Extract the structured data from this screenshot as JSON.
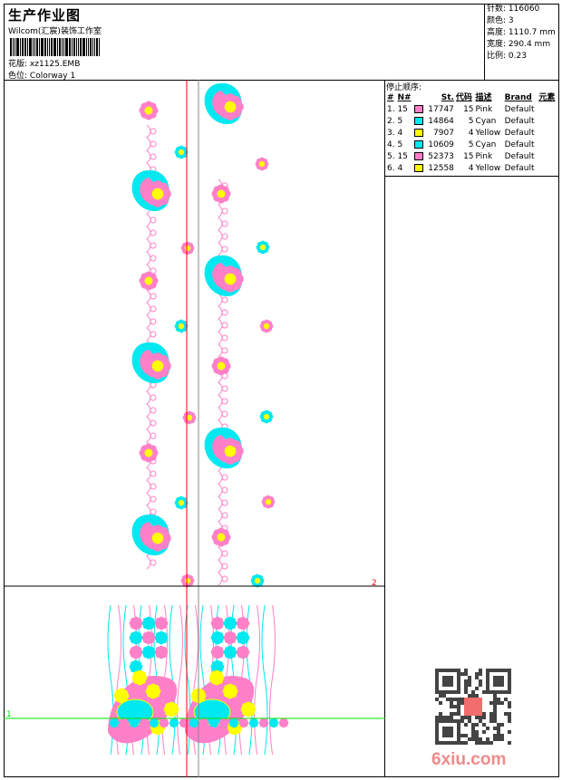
{
  "header": {
    "title": "生产作业图",
    "studio": "Wilcom(汇宸)装饰工作室",
    "design_label": "花版:",
    "design_value": "xz1125.EMB",
    "colorway_label": "色位:",
    "colorway_value": "Colorway 1"
  },
  "stats": [
    {
      "label": "针数:",
      "value": "116060"
    },
    {
      "label": "颜色:",
      "value": "3"
    },
    {
      "label": "高度:",
      "value": "1110.7 mm"
    },
    {
      "label": "宽度:",
      "value": "290.4 mm"
    },
    {
      "label": "比例:",
      "value": "0.23"
    }
  ],
  "stop_sequence": {
    "title": "停止顺序:",
    "columns": [
      "#",
      "N#",
      "St.",
      "代码",
      "描述",
      "Brand",
      "元素"
    ],
    "rows": [
      {
        "idx": "1.",
        "n": "15",
        "color": "#ff80c8",
        "st": "17747",
        "code": "15",
        "desc": "Pink",
        "brand": "Default"
      },
      {
        "idx": "2.",
        "n": "5",
        "color": "#00e8f0",
        "st": "14864",
        "code": "5",
        "desc": "Cyan",
        "brand": "Default"
      },
      {
        "idx": "3.",
        "n": "4",
        "color": "#ffff00",
        "st": "7907",
        "code": "4",
        "desc": "Yellow",
        "brand": "Default"
      },
      {
        "idx": "4.",
        "n": "5",
        "color": "#00e8f0",
        "st": "10609",
        "code": "5",
        "desc": "Cyan",
        "brand": "Default"
      },
      {
        "idx": "5.",
        "n": "15",
        "color": "#ff80c8",
        "st": "52373",
        "code": "15",
        "desc": "Pink",
        "brand": "Default"
      },
      {
        "idx": "6.",
        "n": "4",
        "color": "#ffff00",
        "st": "12558",
        "code": "4",
        "desc": "Yellow",
        "brand": "Default"
      }
    ]
  },
  "guides": {
    "marker_1": "1",
    "marker_2": "2"
  },
  "watermark": "6xiu.com",
  "colors": {
    "pink": "#ff80c8",
    "cyan": "#00e8f0",
    "yellow": "#ffff00",
    "guide_red": "#ff0000",
    "guide_green": "#00e000"
  }
}
